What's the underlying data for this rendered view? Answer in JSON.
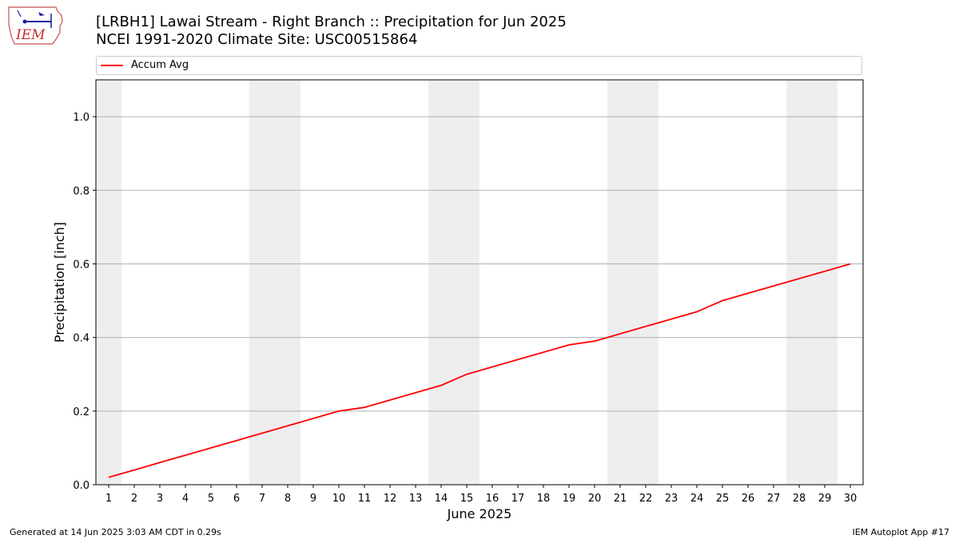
{
  "header": {
    "title_line1": "[LRBH1] Lawai Stream - Right Branch :: Precipitation for Jun 2025",
    "title_line2": "NCEI 1991-2020 Climate Site: USC00515864",
    "logo_text": "IEM"
  },
  "legend": {
    "entry": "Accum Avg"
  },
  "footer": {
    "left": "Generated at 14 Jun 2025 3:03 AM CDT in 0.29s",
    "right": "IEM Autoplot App #17"
  },
  "colors": {
    "line": "#ff0000",
    "weekend_band": "#eeeeee",
    "grid": "#b0b0b0"
  },
  "chart_data": {
    "type": "line",
    "xlabel": "June 2025",
    "ylabel": "Precipitation [inch]",
    "xlim": [
      0.5,
      30.5
    ],
    "ylim": [
      0,
      1.1
    ],
    "yticks": [
      0.0,
      0.2,
      0.4,
      0.6,
      0.8,
      1.0
    ],
    "ytick_labels": [
      "0.0",
      "0.2",
      "0.4",
      "0.6",
      "0.8",
      "1.0"
    ],
    "x": [
      1,
      2,
      3,
      4,
      5,
      6,
      7,
      8,
      9,
      10,
      11,
      12,
      13,
      14,
      15,
      16,
      17,
      18,
      19,
      20,
      21,
      22,
      23,
      24,
      25,
      26,
      27,
      28,
      29,
      30
    ],
    "xtick_labels": [
      "1",
      "2",
      "3",
      "4",
      "5",
      "6",
      "7",
      "8",
      "9",
      "10",
      "11",
      "12",
      "13",
      "14",
      "15",
      "16",
      "17",
      "18",
      "19",
      "20",
      "21",
      "22",
      "23",
      "24",
      "25",
      "26",
      "27",
      "28",
      "29",
      "30"
    ],
    "series": [
      {
        "name": "Accum Avg",
        "color": "#ff0000",
        "values": [
          0.02,
          0.04,
          0.06,
          0.08,
          0.1,
          0.12,
          0.14,
          0.16,
          0.18,
          0.2,
          0.21,
          0.23,
          0.25,
          0.27,
          0.3,
          0.32,
          0.34,
          0.36,
          0.38,
          0.39,
          0.41,
          0.43,
          0.45,
          0.47,
          0.5,
          0.52,
          0.54,
          0.56,
          0.58,
          0.6
        ]
      }
    ],
    "weekend_bands": [
      [
        0.5,
        1.5
      ],
      [
        6.5,
        8.5
      ],
      [
        13.5,
        15.5
      ],
      [
        20.5,
        22.5
      ],
      [
        27.5,
        29.5
      ]
    ],
    "grid": "y-major",
    "legend_position": "top"
  }
}
